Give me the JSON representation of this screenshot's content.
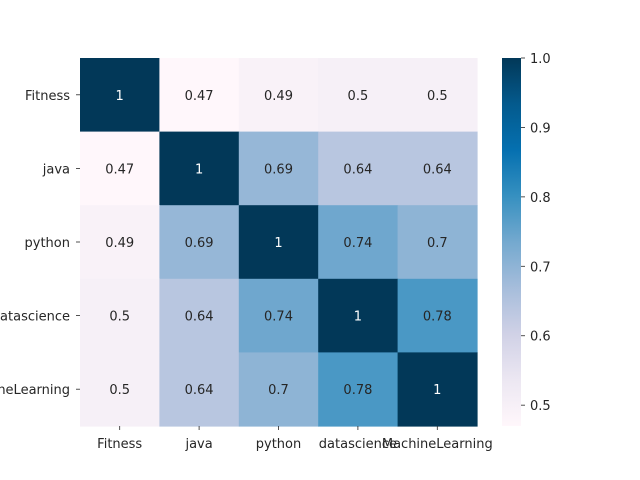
{
  "chart_data": {
    "type": "heatmap",
    "title": "",
    "xlabel": "",
    "ylabel": "",
    "x_tick_labels": [
      "Fitness",
      "java",
      "python",
      "datascience",
      "MachineLearning"
    ],
    "y_tick_labels": [
      "Fitness",
      "java",
      "python",
      "datascience",
      "MachineLearning"
    ],
    "values": [
      [
        1,
        0.47,
        0.49,
        0.5,
        0.5
      ],
      [
        0.47,
        1,
        0.69,
        0.64,
        0.64
      ],
      [
        0.49,
        0.69,
        1,
        0.74,
        0.7
      ],
      [
        0.5,
        0.64,
        0.74,
        1,
        0.78
      ],
      [
        0.5,
        0.64,
        0.7,
        0.78,
        1
      ]
    ],
    "cell_labels": [
      [
        "1",
        "0.47",
        "0.49",
        "0.5",
        "0.5"
      ],
      [
        "0.47",
        "1",
        "0.69",
        "0.64",
        "0.64"
      ],
      [
        "0.49",
        "0.69",
        "1",
        "0.74",
        "0.7"
      ],
      [
        "0.5",
        "0.64",
        "0.74",
        "1",
        "0.78"
      ],
      [
        "0.5",
        "0.64",
        "0.7",
        "0.78",
        "1"
      ]
    ],
    "colormap": "PuBu",
    "colorbar": {
      "range": [
        0.47,
        1.0
      ],
      "ticks": [
        0.5,
        0.6,
        0.7,
        0.8,
        0.9,
        1.0
      ],
      "tick_labels": [
        "0.5",
        "0.6",
        "0.7",
        "0.8",
        "0.9",
        "1.0"
      ]
    },
    "grid": false
  }
}
